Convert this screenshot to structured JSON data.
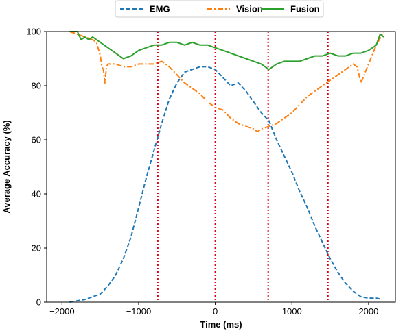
{
  "chart_data": {
    "type": "line",
    "xlabel": "Time (ms)",
    "ylabel": "Average Accuracy (%)",
    "xlim": [
      -2200,
      2350
    ],
    "ylim": [
      0,
      100
    ],
    "xticks": [
      -2000,
      -1000,
      0,
      1000,
      2000
    ],
    "xtick_labels": [
      "−2000",
      "−1000",
      "0",
      "1000",
      "2000"
    ],
    "yticks": [
      0,
      20,
      40,
      60,
      80,
      100
    ],
    "ytick_labels": [
      "0",
      "20",
      "40",
      "60",
      "80",
      "100"
    ],
    "grid": false,
    "legend_position": "top (above plot)",
    "vertical_lines": [
      {
        "x": -750,
        "color": "#e0000f",
        "style": "dotted"
      },
      {
        "x": 0,
        "color": "#e0000f",
        "style": "dotted"
      },
      {
        "x": 690,
        "color": "#e0000f",
        "style": "dotted"
      },
      {
        "x": 1470,
        "color": "#e0000f",
        "style": "dotted"
      }
    ],
    "series": [
      {
        "name": "EMG",
        "color": "#1f77b4",
        "style": "dashed",
        "x": [
          -1900,
          -1700,
          -1500,
          -1400,
          -1300,
          -1200,
          -1100,
          -1000,
          -900,
          -800,
          -700,
          -600,
          -500,
          -400,
          -300,
          -200,
          -100,
          0,
          100,
          200,
          300,
          400,
          500,
          600,
          700,
          800,
          900,
          1000,
          1100,
          1200,
          1300,
          1400,
          1500,
          1600,
          1700,
          1800,
          1900,
          2000,
          2100,
          2180
        ],
        "values": [
          0,
          1,
          3,
          6,
          10,
          16,
          24,
          35,
          46,
          56,
          66,
          75,
          81,
          85,
          86,
          87,
          87,
          86,
          83,
          80,
          81,
          78,
          74,
          70,
          67,
          60,
          54,
          48,
          41,
          35,
          28,
          22,
          16,
          11,
          7,
          4,
          2,
          1.5,
          1.5,
          1
        ]
      },
      {
        "name": "Vision",
        "color": "#ff7f0e",
        "style": "dashdot",
        "x": [
          -1900,
          -1800,
          -1700,
          -1600,
          -1550,
          -1500,
          -1480,
          -1460,
          -1440,
          -1420,
          -1400,
          -1300,
          -1200,
          -1100,
          -1000,
          -900,
          -800,
          -700,
          -600,
          -500,
          -400,
          -300,
          -200,
          -100,
          0,
          100,
          200,
          300,
          400,
          500,
          550,
          600,
          700,
          800,
          900,
          1000,
          1100,
          1200,
          1300,
          1400,
          1500,
          1600,
          1700,
          1800,
          1850,
          1900,
          2000,
          2100,
          2200
        ],
        "values": [
          100,
          99,
          98,
          97,
          96,
          91,
          87,
          86,
          81,
          87,
          88,
          88,
          87,
          87,
          88,
          88,
          88,
          89,
          87,
          84,
          81,
          79,
          77,
          74,
          72,
          71,
          68,
          66,
          65,
          64,
          63,
          64,
          65,
          66,
          68,
          70,
          73,
          76,
          78,
          80,
          82,
          84,
          86,
          88,
          87,
          81,
          88,
          95,
          100
        ]
      },
      {
        "name": "Fusion",
        "color": "#2ca02c",
        "style": "solid",
        "x": [
          -1900,
          -1800,
          -1750,
          -1700,
          -1650,
          -1600,
          -1550,
          -1500,
          -1450,
          -1400,
          -1300,
          -1200,
          -1100,
          -1000,
          -900,
          -800,
          -700,
          -600,
          -500,
          -400,
          -300,
          -200,
          -100,
          0,
          100,
          200,
          300,
          400,
          500,
          600,
          650,
          700,
          800,
          900,
          1000,
          1100,
          1200,
          1300,
          1400,
          1500,
          1600,
          1700,
          1800,
          1900,
          2000,
          2100,
          2150,
          2200
        ],
        "values": [
          100,
          100,
          97,
          98,
          97,
          98,
          97,
          96,
          95,
          94,
          92,
          90,
          91,
          93,
          94,
          95,
          95,
          96,
          96,
          95,
          96,
          95,
          95,
          94,
          93,
          92,
          91,
          90,
          89,
          88,
          87,
          86,
          88,
          89,
          89,
          89,
          90,
          91,
          91,
          92,
          91,
          91,
          92,
          92,
          93,
          95,
          99,
          98
        ]
      }
    ]
  }
}
